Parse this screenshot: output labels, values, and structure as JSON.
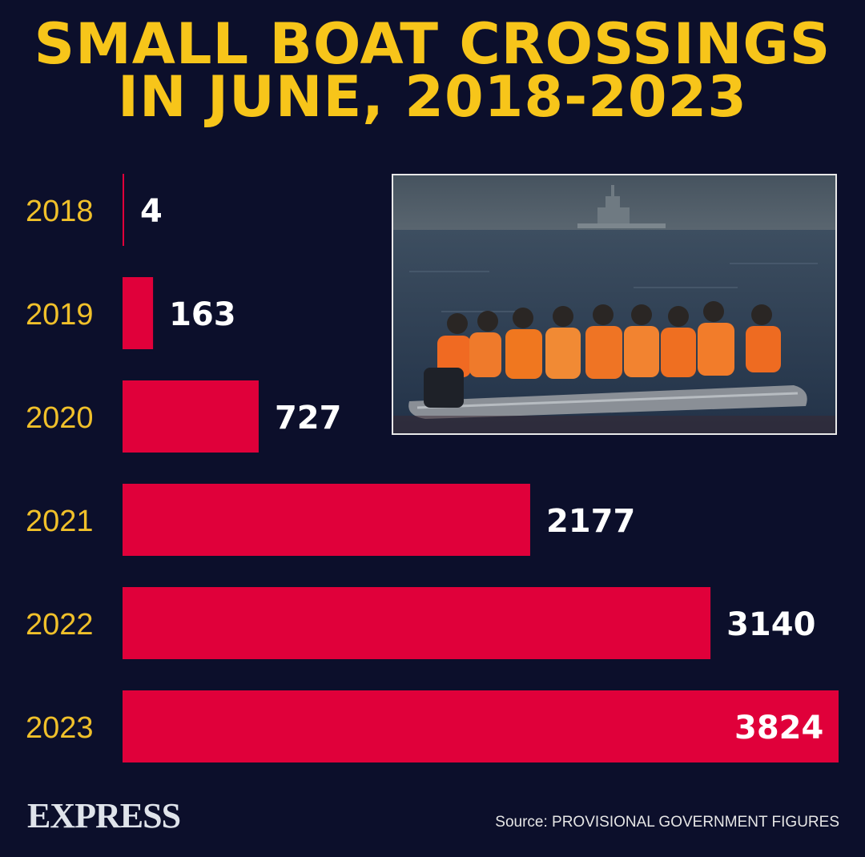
{
  "title": {
    "line1": "SMALL BOAT CROSSINGS",
    "line2": "IN JUNE, 2018-2023"
  },
  "brand": "EXPRESS",
  "source": "Source: PROVISIONAL GOVERNMENT FIGURES",
  "colors": {
    "background": "#0c0f2b",
    "bar": "#e0003a",
    "title": "#f7c51a",
    "year_label": "#f0c02a",
    "value_label": "#ffffff"
  },
  "photo": {
    "icon": "migrant-boat-photo"
  },
  "chart_data": {
    "type": "bar",
    "orientation": "horizontal",
    "categories": [
      "2018",
      "2019",
      "2020",
      "2021",
      "2022",
      "2023"
    ],
    "values": [
      4,
      163,
      727,
      2177,
      3140,
      3824
    ],
    "data_labels": [
      "4",
      "163",
      "727",
      "2177",
      "3140",
      "3824"
    ],
    "xlim": [
      0,
      3824
    ],
    "grid": false,
    "legend": "none"
  }
}
